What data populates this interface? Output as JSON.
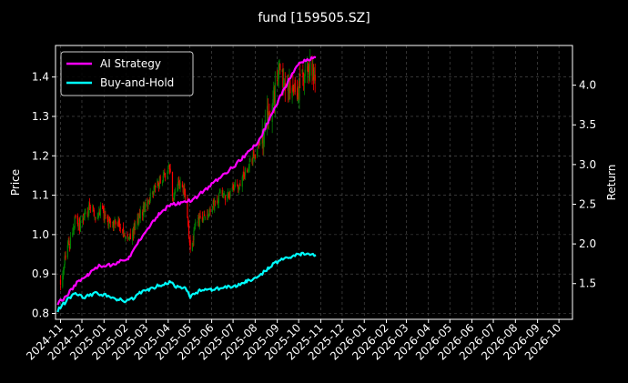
{
  "chart_data": {
    "type": "line",
    "title": "fund [159505.SZ]",
    "ylabel_left": "Price",
    "ylabel_right": "Return",
    "y_left_range": [
      0.785,
      1.48
    ],
    "y_right_range": [
      1.05,
      4.5
    ],
    "y_left_ticks": [
      "0.8",
      "0.9",
      "1.0",
      "1.1",
      "1.2",
      "1.3",
      "1.4"
    ],
    "y_right_ticks": [
      "1.5",
      "2.0",
      "2.5",
      "3.0",
      "3.5",
      "4.0"
    ],
    "x_ticks": [
      "2024-11",
      "2024-12",
      "2025-01",
      "2025-02",
      "2025-03",
      "2025-04",
      "2025-05",
      "2025-06",
      "2025-07",
      "2025-08",
      "2025-09",
      "2025-10",
      "2025-11",
      "2025-12",
      "2026-01",
      "2026-02",
      "2026-03",
      "2026-04",
      "2026-05",
      "2026-06",
      "2026-07",
      "2026-08",
      "2026-09",
      "2026-10"
    ],
    "x_range": [
      "2024-10-25",
      "2026-10-20"
    ],
    "grid": true,
    "legend_position": "top-left",
    "candles": {
      "up_color": "#008000",
      "down_color": "#ff0000",
      "description": "daily OHLC of fund price (left axis)",
      "close_keypoints": [
        [
          "2024-11-01",
          0.88
        ],
        [
          "2024-11-08",
          0.95
        ],
        [
          "2024-11-15",
          0.98
        ],
        [
          "2024-11-22",
          1.04
        ],
        [
          "2024-11-29",
          1.02
        ],
        [
          "2024-12-06",
          1.05
        ],
        [
          "2024-12-13",
          1.07
        ],
        [
          "2024-12-20",
          1.05
        ],
        [
          "2024-12-27",
          1.06
        ],
        [
          "2025-01-03",
          1.04
        ],
        [
          "2025-01-10",
          1.02
        ],
        [
          "2025-01-17",
          1.03
        ],
        [
          "2025-01-24",
          1.02
        ],
        [
          "2025-02-07",
          0.98
        ],
        [
          "2025-02-14",
          1.03
        ],
        [
          "2025-02-21",
          1.05
        ],
        [
          "2025-02-28",
          1.07
        ],
        [
          "2025-03-07",
          1.1
        ],
        [
          "2025-03-14",
          1.12
        ],
        [
          "2025-03-21",
          1.14
        ],
        [
          "2025-03-28",
          1.15
        ],
        [
          "2025-04-03",
          1.18
        ],
        [
          "2025-04-07",
          1.1
        ],
        [
          "2025-04-14",
          1.13
        ],
        [
          "2025-04-21",
          1.12
        ],
        [
          "2025-04-25",
          1.1
        ],
        [
          "2025-05-02",
          0.96
        ],
        [
          "2025-05-09",
          1.02
        ],
        [
          "2025-05-16",
          1.04
        ],
        [
          "2025-05-23",
          1.05
        ],
        [
          "2025-05-30",
          1.07
        ],
        [
          "2025-06-06",
          1.08
        ],
        [
          "2025-06-13",
          1.1
        ],
        [
          "2025-06-20",
          1.09
        ],
        [
          "2025-06-27",
          1.11
        ],
        [
          "2025-07-04",
          1.12
        ],
        [
          "2025-07-11",
          1.13
        ],
        [
          "2025-07-18",
          1.16
        ],
        [
          "2025-07-25",
          1.19
        ],
        [
          "2025-08-01",
          1.2
        ],
        [
          "2025-08-08",
          1.24
        ],
        [
          "2025-08-15",
          1.28
        ],
        [
          "2025-08-22",
          1.32
        ],
        [
          "2025-08-29",
          1.37
        ],
        [
          "2025-09-05",
          1.42
        ],
        [
          "2025-09-12",
          1.38
        ],
        [
          "2025-09-19",
          1.36
        ],
        [
          "2025-09-26",
          1.35
        ],
        [
          "2025-10-03",
          1.38
        ],
        [
          "2025-10-10",
          1.41
        ],
        [
          "2025-10-17",
          1.43
        ],
        [
          "2025-10-24",
          1.42
        ]
      ]
    },
    "series": [
      {
        "name": "AI Strategy",
        "axis": "right",
        "color": "#ff00ff",
        "points": [
          [
            "2024-10-28",
            1.25
          ],
          [
            "2024-11-10",
            1.35
          ],
          [
            "2024-11-25",
            1.52
          ],
          [
            "2024-12-10",
            1.62
          ],
          [
            "2024-12-25",
            1.72
          ],
          [
            "2025-01-10",
            1.73
          ],
          [
            "2025-01-25",
            1.78
          ],
          [
            "2025-02-05",
            1.83
          ],
          [
            "2025-02-20",
            2.05
          ],
          [
            "2025-03-05",
            2.22
          ],
          [
            "2025-03-20",
            2.38
          ],
          [
            "2025-04-05",
            2.5
          ],
          [
            "2025-04-20",
            2.52
          ],
          [
            "2025-05-05",
            2.55
          ],
          [
            "2025-05-20",
            2.66
          ],
          [
            "2025-06-05",
            2.78
          ],
          [
            "2025-06-20",
            2.88
          ],
          [
            "2025-07-05",
            3.0
          ],
          [
            "2025-07-20",
            3.13
          ],
          [
            "2025-08-05",
            3.28
          ],
          [
            "2025-08-20",
            3.55
          ],
          [
            "2025-09-05",
            3.85
          ],
          [
            "2025-09-20",
            4.12
          ],
          [
            "2025-10-05",
            4.3
          ],
          [
            "2025-10-25",
            4.35
          ]
        ]
      },
      {
        "name": "Buy-and-Hold",
        "axis": "right",
        "color": "#00ffff",
        "points": [
          [
            "2024-10-28",
            1.16
          ],
          [
            "2024-11-05",
            1.24
          ],
          [
            "2024-11-20",
            1.38
          ],
          [
            "2024-12-05",
            1.33
          ],
          [
            "2024-12-20",
            1.38
          ],
          [
            "2025-01-05",
            1.35
          ],
          [
            "2025-01-20",
            1.3
          ],
          [
            "2025-02-05",
            1.28
          ],
          [
            "2025-02-20",
            1.38
          ],
          [
            "2025-03-05",
            1.42
          ],
          [
            "2025-03-20",
            1.48
          ],
          [
            "2025-04-03",
            1.52
          ],
          [
            "2025-04-10",
            1.47
          ],
          [
            "2025-04-20",
            1.45
          ],
          [
            "2025-04-25",
            1.43
          ],
          [
            "2025-05-02",
            1.34
          ],
          [
            "2025-05-15",
            1.41
          ],
          [
            "2025-06-01",
            1.43
          ],
          [
            "2025-06-20",
            1.45
          ],
          [
            "2025-07-05",
            1.47
          ],
          [
            "2025-07-20",
            1.53
          ],
          [
            "2025-08-05",
            1.58
          ],
          [
            "2025-08-20",
            1.7
          ],
          [
            "2025-09-05",
            1.8
          ],
          [
            "2025-09-20",
            1.84
          ],
          [
            "2025-10-05",
            1.87
          ],
          [
            "2025-10-25",
            1.86
          ]
        ]
      }
    ]
  }
}
